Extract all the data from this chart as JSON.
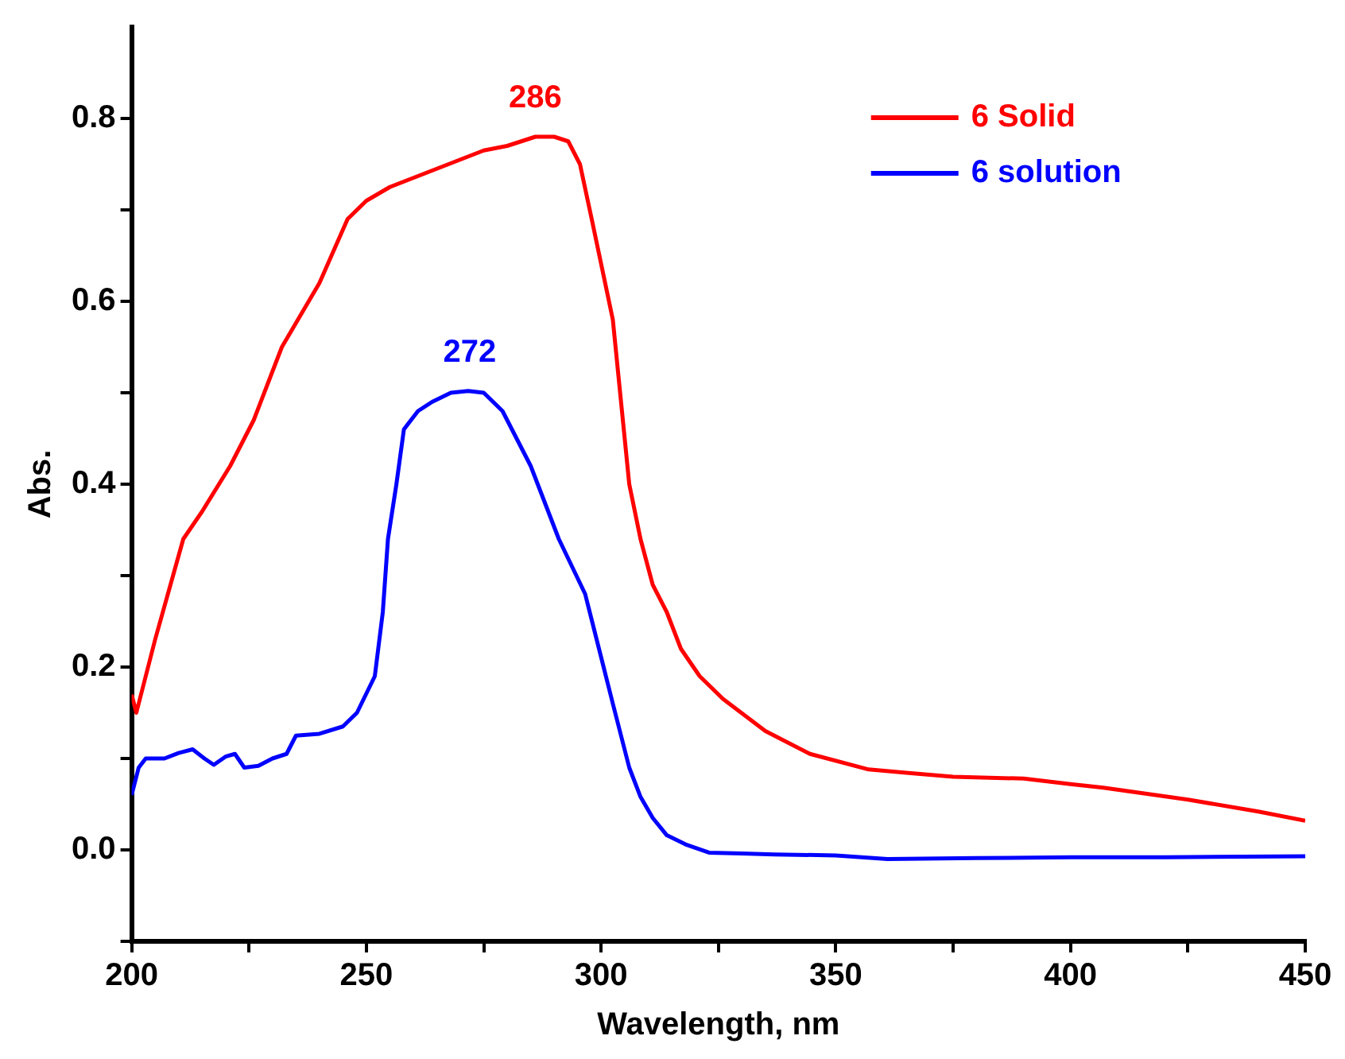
{
  "chart_data": {
    "type": "line",
    "xlabel": "Wavelength, nm",
    "ylabel": "Abs.",
    "xlim": [
      200,
      450
    ],
    "xticks": [
      200,
      {
        "value": 225,
        "label": null
      },
      250,
      {
        "value": 275,
        "label": null
      },
      300,
      {
        "value": 325,
        "label": null
      },
      350,
      {
        "value": 375,
        "label": null
      },
      400,
      {
        "value": 425,
        "label": null
      },
      450
    ],
    "ylim": [
      -0.1,
      0.9
    ],
    "yticks": [
      {
        "value": -0.1,
        "label": null
      },
      {
        "value": 0,
        "label": "0.0"
      },
      {
        "value": 0.1,
        "label": null
      },
      {
        "value": 0.2,
        "label": "0.2"
      },
      {
        "value": 0.3,
        "label": null
      },
      {
        "value": 0.4,
        "label": "0.4"
      },
      {
        "value": 0.5,
        "label": null
      },
      {
        "value": 0.6,
        "label": "0.6"
      },
      {
        "value": 0.7,
        "label": null
      },
      {
        "value": 0.8,
        "label": "0.8"
      }
    ],
    "grid": false,
    "legend": "top right",
    "marker": "none",
    "line_style": "solid",
    "series": [
      {
        "name": "6 Solid",
        "color": "#ff0000",
        "x": [
          200,
          201,
          205,
          211,
          215,
          221,
          226,
          232,
          240,
          246,
          250,
          255,
          260,
          265,
          270,
          275,
          280,
          286,
          290,
          293,
          295.5,
          298,
          302.5,
          306,
          308.4,
          311,
          314,
          317,
          321,
          326,
          335,
          344.5,
          357,
          366,
          375,
          390,
          400,
          407,
          425,
          440,
          450
        ],
        "values": [
          0.17,
          0.15,
          0.23,
          0.34,
          0.37,
          0.42,
          0.47,
          0.55,
          0.62,
          0.69,
          0.71,
          0.725,
          0.735,
          0.745,
          0.755,
          0.765,
          0.77,
          0.78,
          0.78,
          0.775,
          0.75,
          0.69,
          0.58,
          0.4,
          0.34,
          0.29,
          0.26,
          0.22,
          0.19,
          0.165,
          0.13,
          0.105,
          0.088,
          0.084,
          0.08,
          0.078,
          0.072,
          0.068,
          0.055,
          0.042,
          0.032
        ]
      },
      {
        "name": "6 solution",
        "color": "#0000ff",
        "x": [
          200,
          201.5,
          203,
          207,
          210,
          213,
          215.5,
          217.5,
          220,
          222,
          224,
          227,
          230,
          233,
          235,
          240,
          245,
          248,
          251.8,
          253.5,
          254.6,
          256.4,
          258,
          261,
          264,
          268,
          271.7,
          275,
          279,
          285,
          291,
          296.6,
          302.5,
          306,
          308.4,
          311,
          314,
          318,
          323,
          330,
          337,
          350,
          361,
          380,
          400,
          420,
          450
        ],
        "values": [
          0.06,
          0.09,
          0.1,
          0.1,
          0.106,
          0.11,
          0.1,
          0.093,
          0.102,
          0.105,
          0.09,
          0.092,
          0.1,
          0.105,
          0.125,
          0.127,
          0.135,
          0.15,
          0.19,
          0.26,
          0.34,
          0.4,
          0.46,
          0.48,
          0.49,
          0.5,
          0.502,
          0.5,
          0.48,
          0.42,
          0.34,
          0.28,
          0.16,
          0.09,
          0.058,
          0.035,
          0.016,
          0.006,
          -0.003,
          -0.004,
          -0.005,
          -0.006,
          -0.01,
          -0.009,
          -0.008,
          -0.008,
          -0.007
        ]
      }
    ],
    "annotations": [
      {
        "text": "286",
        "x": 286,
        "y": 0.78
      },
      {
        "text": "272",
        "x": 272,
        "y": 0.502
      }
    ]
  }
}
